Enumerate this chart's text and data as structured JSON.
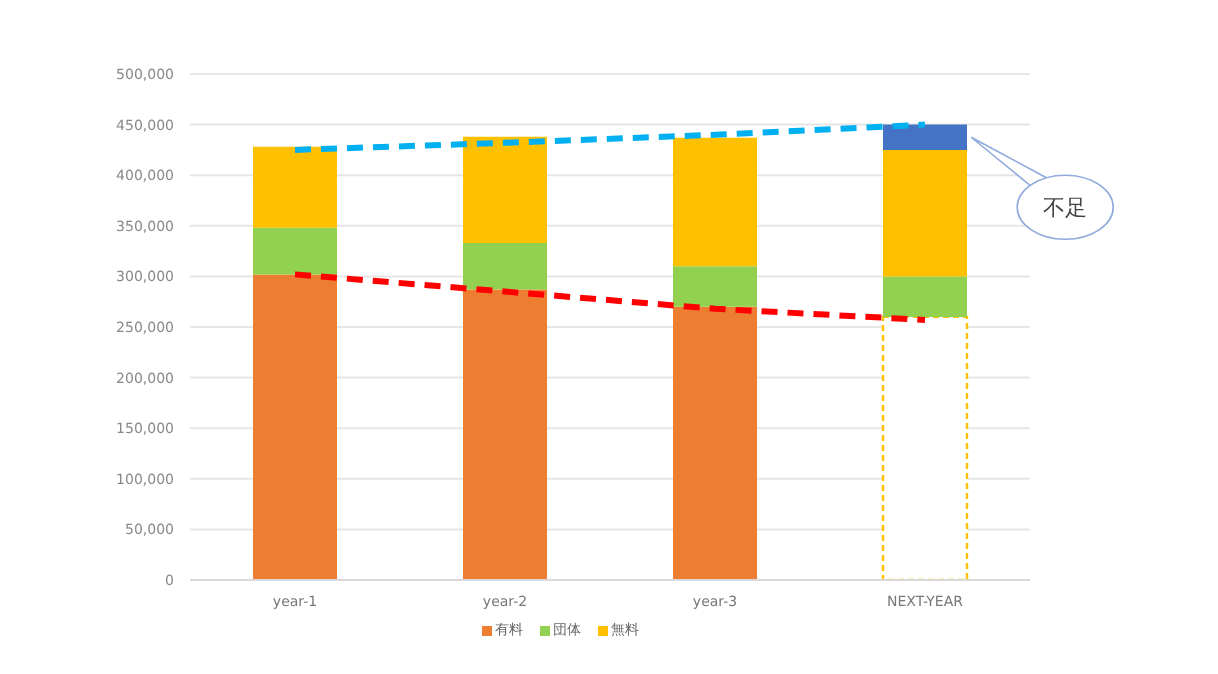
{
  "chart_data": {
    "type": "bar",
    "stacked": true,
    "categories": [
      "year-1",
      "year-2",
      "year-3",
      "NEXT-YEAR"
    ],
    "series": [
      {
        "name": "有料",
        "color": "#ed7d31",
        "colors": [
          "#ed7d31",
          "#ed7d31",
          "#ed7d31",
          "#ffffff"
        ],
        "values": [
          302000,
          287000,
          270000,
          260000
        ]
      },
      {
        "name": "団体",
        "color": "#92d050",
        "values": [
          46000,
          46000,
          40000,
          40000
        ]
      },
      {
        "name": "無料",
        "color": "#ffc000",
        "values": [
          80000,
          105000,
          127000,
          125000
        ]
      },
      {
        "color": "#4472c4",
        "values": [
          null,
          null,
          null,
          25000
        ]
      },
      {
        "type": "line",
        "color": "#00b0f0",
        "line_style": "dashed",
        "values": [
          425000,
          432000,
          440000,
          450000
        ]
      },
      {
        "type": "line",
        "color": "#ff0000",
        "line_style": "dashed",
        "values": [
          302000,
          285000,
          268000,
          257000
        ]
      }
    ],
    "ylim": [
      0,
      500000
    ],
    "yticks": [
      {
        "value": 0,
        "label": "0"
      },
      {
        "value": 50000,
        "label": "50,000"
      },
      {
        "value": 100000,
        "label": "100,000"
      },
      {
        "value": 150000,
        "label": "150,000"
      },
      {
        "value": 200000,
        "label": "200,000"
      },
      {
        "value": 250000,
        "label": "250,000"
      },
      {
        "value": 300000,
        "label": "300,000"
      },
      {
        "value": 350000,
        "label": "350,000"
      },
      {
        "value": 400000,
        "label": "400,000"
      },
      {
        "value": 450000,
        "label": "450,000"
      },
      {
        "value": 500000,
        "label": "500,000"
      }
    ],
    "grid": "y",
    "legend": "bottom",
    "marker": "none",
    "annotations": [
      "不足"
    ]
  }
}
